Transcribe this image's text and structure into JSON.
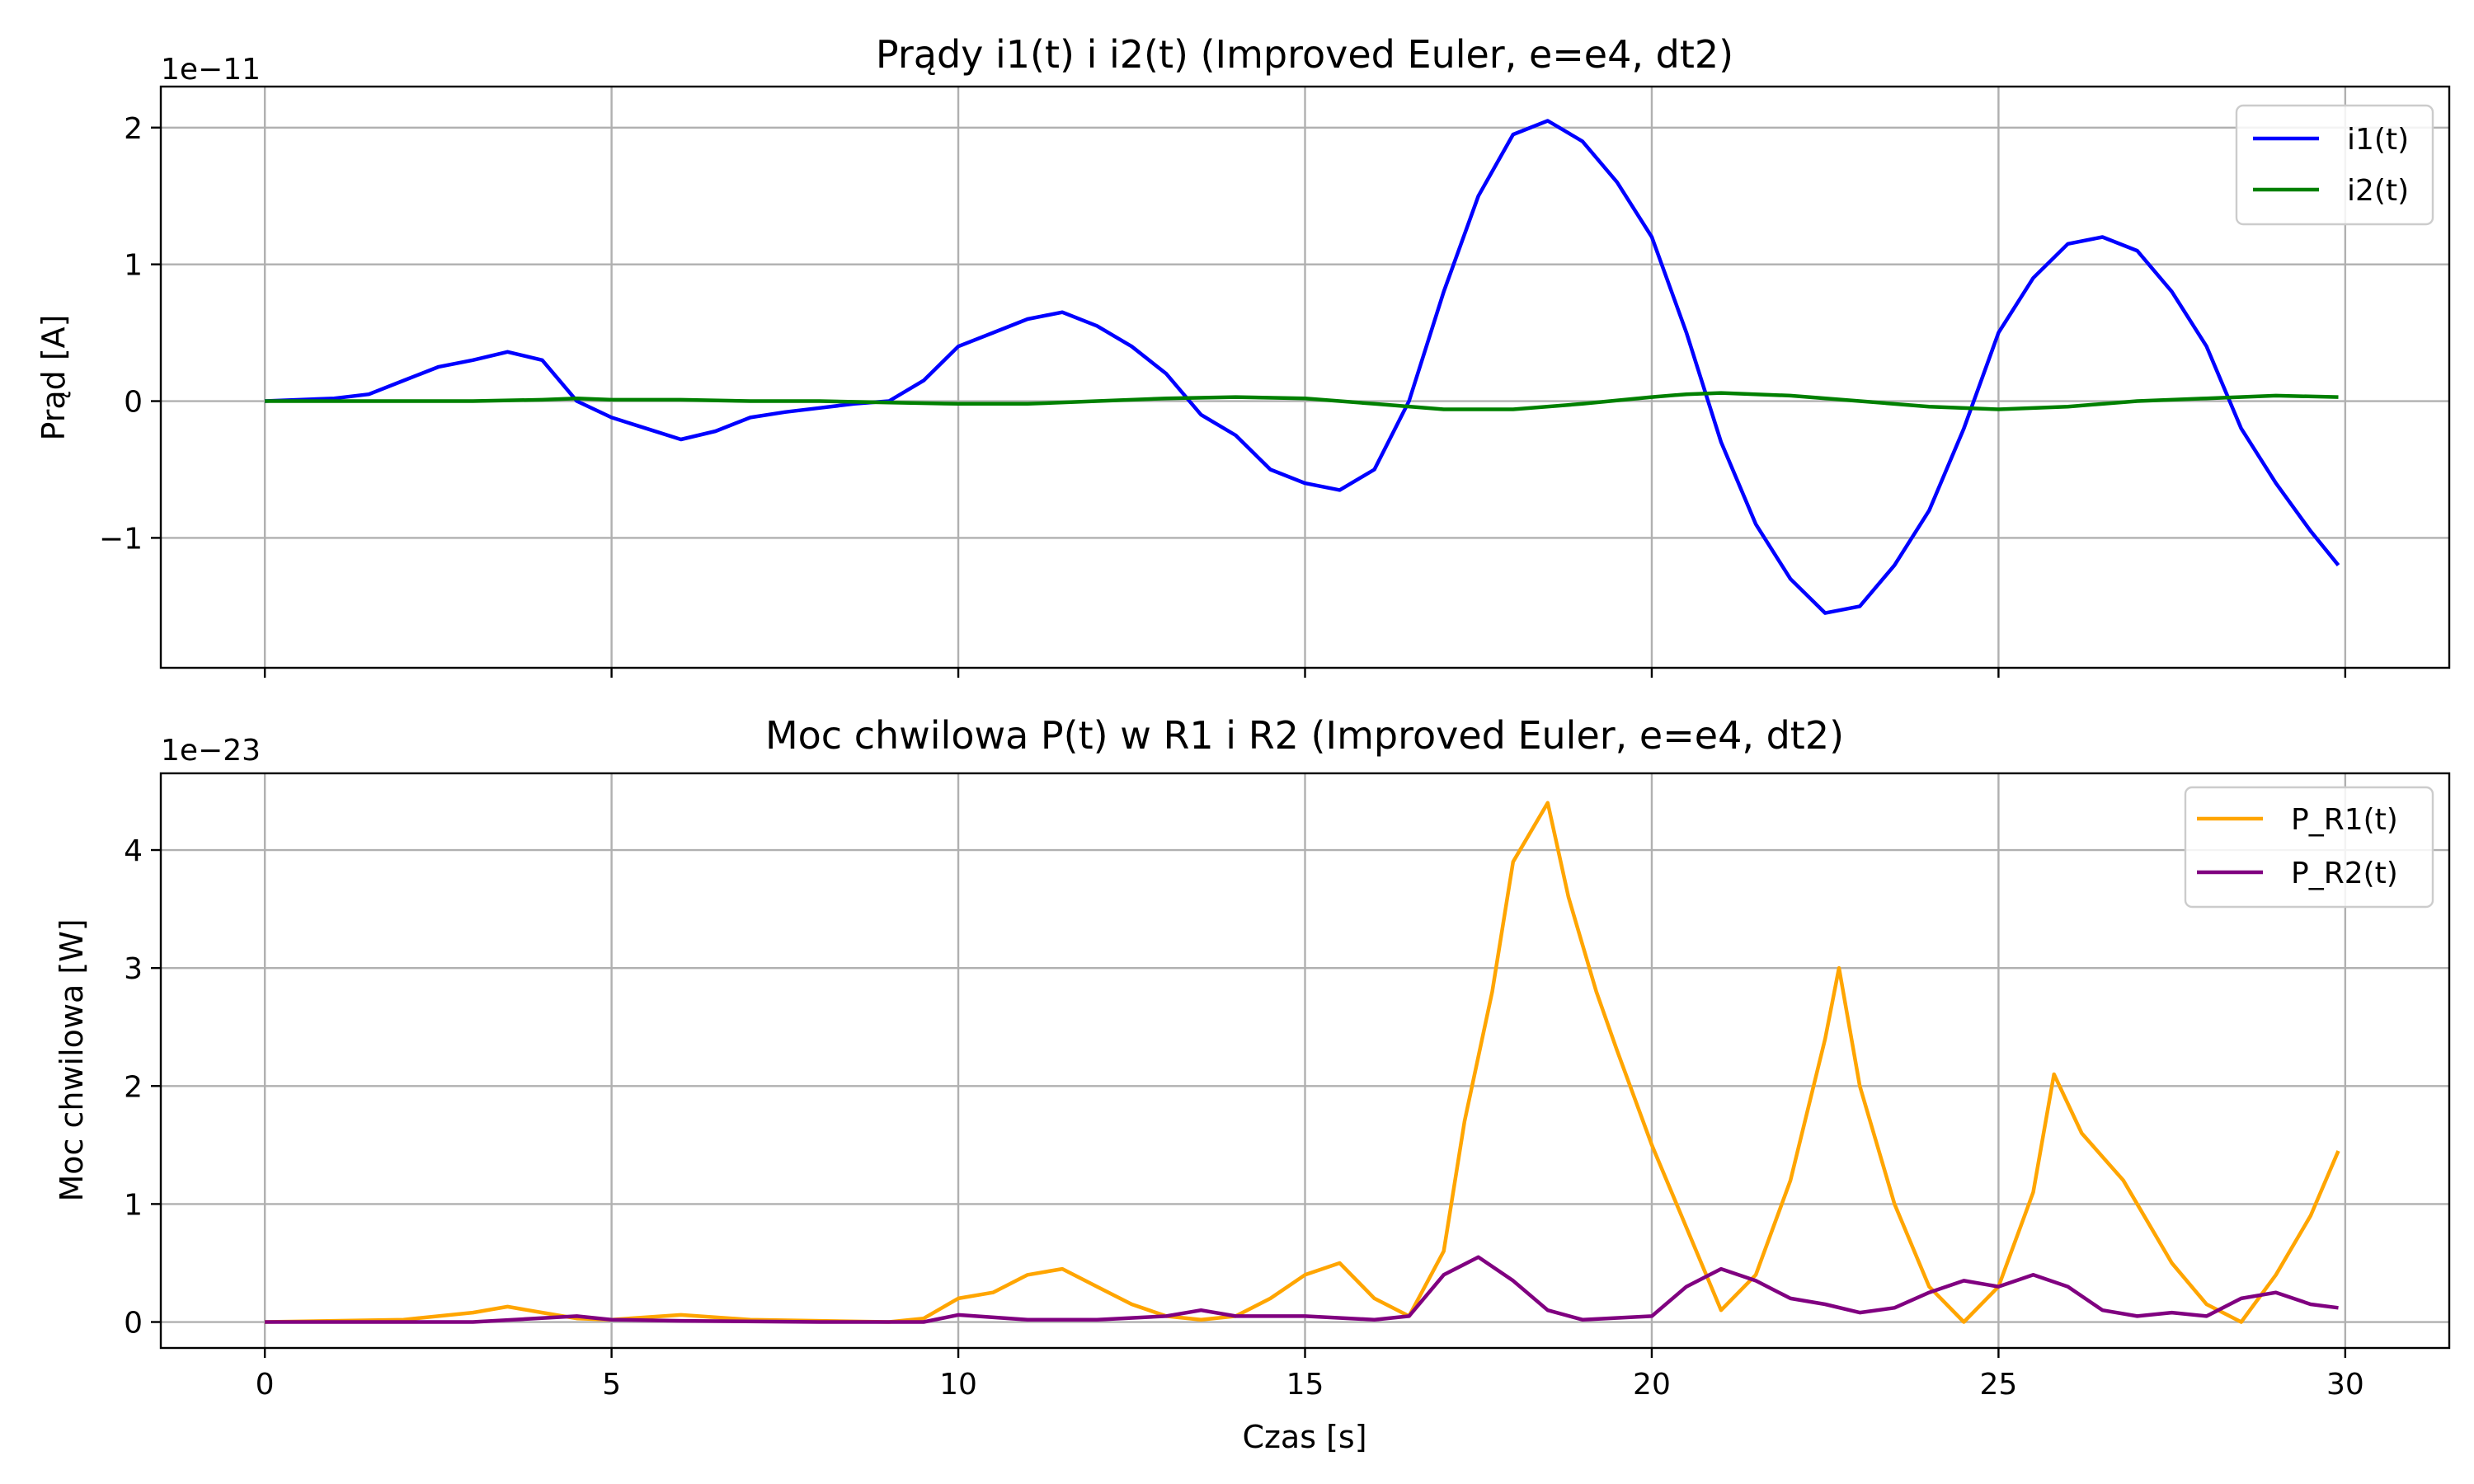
{
  "chart_data": [
    {
      "type": "line",
      "title": "Prądy i1(t) i i2(t) (Improved Euler, e=e4, dt2)",
      "xlabel": "",
      "ylabel": "Prąd [A]",
      "y_offset_text": "1e−11",
      "y_scale": 1e-11,
      "xlim": [
        -1.5,
        31.5
      ],
      "ylim": [
        -1.95,
        2.3
      ],
      "xticks": [
        0,
        5,
        10,
        15,
        20,
        25,
        30
      ],
      "xtick_labels_visible": false,
      "yticks": [
        -1,
        0,
        1,
        2
      ],
      "ytick_labels": [
        "−1",
        "0",
        "1",
        "2"
      ],
      "grid": true,
      "legend_position": "top-right",
      "series": [
        {
          "name": "i1(t)",
          "color": "#0000ff",
          "points": [
            [
              0,
              0
            ],
            [
              1,
              0.02
            ],
            [
              1.5,
              0.05
            ],
            [
              2,
              0.15
            ],
            [
              2.5,
              0.25
            ],
            [
              3,
              0.3
            ],
            [
              3.5,
              0.36
            ],
            [
              4,
              0.3
            ],
            [
              4.5,
              0
            ],
            [
              5,
              -0.12
            ],
            [
              5.5,
              -0.2
            ],
            [
              6,
              -0.28
            ],
            [
              6.5,
              -0.22
            ],
            [
              7,
              -0.12
            ],
            [
              7.5,
              -0.08
            ],
            [
              8,
              -0.05
            ],
            [
              8.5,
              -0.02
            ],
            [
              9,
              0
            ],
            [
              9.5,
              0.15
            ],
            [
              10,
              0.4
            ],
            [
              10.5,
              0.5
            ],
            [
              11,
              0.6
            ],
            [
              11.5,
              0.65
            ],
            [
              12,
              0.55
            ],
            [
              12.5,
              0.4
            ],
            [
              13,
              0.2
            ],
            [
              13.5,
              -0.1
            ],
            [
              14,
              -0.25
            ],
            [
              14.5,
              -0.5
            ],
            [
              15,
              -0.6
            ],
            [
              15.5,
              -0.65
            ],
            [
              16,
              -0.5
            ],
            [
              16.5,
              0
            ],
            [
              17,
              0.8
            ],
            [
              17.5,
              1.5
            ],
            [
              18,
              1.95
            ],
            [
              18.5,
              2.05
            ],
            [
              19,
              1.9
            ],
            [
              19.5,
              1.6
            ],
            [
              20,
              1.2
            ],
            [
              20.5,
              0.5
            ],
            [
              21,
              -0.3
            ],
            [
              21.5,
              -0.9
            ],
            [
              22,
              -1.3
            ],
            [
              22.5,
              -1.55
            ],
            [
              23,
              -1.5
            ],
            [
              23.5,
              -1.2
            ],
            [
              24,
              -0.8
            ],
            [
              24.5,
              -0.2
            ],
            [
              25,
              0.5
            ],
            [
              25.5,
              0.9
            ],
            [
              26,
              1.15
            ],
            [
              26.5,
              1.2
            ],
            [
              27,
              1.1
            ],
            [
              27.5,
              0.8
            ],
            [
              28,
              0.4
            ],
            [
              28.5,
              -0.2
            ],
            [
              29,
              -0.6
            ],
            [
              29.5,
              -0.95
            ],
            [
              29.9,
              -1.2
            ]
          ]
        },
        {
          "name": "i2(t)",
          "color": "#008000",
          "points": [
            [
              0,
              0
            ],
            [
              2,
              0
            ],
            [
              3,
              0
            ],
            [
              4,
              0.01
            ],
            [
              4.5,
              0.02
            ],
            [
              5,
              0.01
            ],
            [
              6,
              0.01
            ],
            [
              7,
              0
            ],
            [
              8,
              0
            ],
            [
              9,
              -0.01
            ],
            [
              10,
              -0.02
            ],
            [
              11,
              -0.02
            ],
            [
              12,
              0
            ],
            [
              13,
              0.02
            ],
            [
              14,
              0.03
            ],
            [
              15,
              0.02
            ],
            [
              16,
              -0.02
            ],
            [
              17,
              -0.06
            ],
            [
              18,
              -0.06
            ],
            [
              19,
              -0.02
            ],
            [
              20,
              0.03
            ],
            [
              20.5,
              0.05
            ],
            [
              21,
              0.06
            ],
            [
              22,
              0.04
            ],
            [
              23,
              0
            ],
            [
              24,
              -0.04
            ],
            [
              25,
              -0.06
            ],
            [
              26,
              -0.04
            ],
            [
              27,
              0
            ],
            [
              28,
              0.02
            ],
            [
              29,
              0.04
            ],
            [
              29.9,
              0.03
            ]
          ]
        }
      ]
    },
    {
      "type": "line",
      "title": "Moc chwilowa P(t) w R1 i R2 (Improved Euler, e=e4, dt2)",
      "xlabel": "Czas [s]",
      "ylabel": "Moc chwilowa [W]",
      "y_offset_text": "1e−23",
      "y_scale": 1e-23,
      "xlim": [
        -1.5,
        31.5
      ],
      "ylim": [
        -0.22,
        4.65
      ],
      "xticks": [
        0,
        5,
        10,
        15,
        20,
        25,
        30
      ],
      "xtick_labels": [
        "0",
        "5",
        "10",
        "15",
        "20",
        "25",
        "30"
      ],
      "yticks": [
        0,
        1,
        2,
        3,
        4
      ],
      "ytick_labels": [
        "0",
        "1",
        "2",
        "3",
        "4"
      ],
      "grid": true,
      "legend_position": "top-right",
      "series": [
        {
          "name": "P_R1(t)",
          "color": "#ffa500",
          "points": [
            [
              0,
              0
            ],
            [
              2,
              0.02
            ],
            [
              3,
              0.08
            ],
            [
              3.5,
              0.13
            ],
            [
              4,
              0.08
            ],
            [
              4.5,
              0.03
            ],
            [
              5,
              0.02
            ],
            [
              6,
              0.06
            ],
            [
              7,
              0.02
            ],
            [
              8,
              0.01
            ],
            [
              9,
              0
            ],
            [
              9.5,
              0.03
            ],
            [
              10,
              0.2
            ],
            [
              10.5,
              0.25
            ],
            [
              11,
              0.4
            ],
            [
              11.5,
              0.45
            ],
            [
              12,
              0.3
            ],
            [
              12.5,
              0.15
            ],
            [
              13,
              0.05
            ],
            [
              13.5,
              0.02
            ],
            [
              14,
              0.05
            ],
            [
              14.5,
              0.2
            ],
            [
              15,
              0.4
            ],
            [
              15.5,
              0.5
            ],
            [
              16,
              0.2
            ],
            [
              16.5,
              0.05
            ],
            [
              17,
              0.6
            ],
            [
              17.3,
              1.7
            ],
            [
              17.7,
              2.8
            ],
            [
              18,
              3.9
            ],
            [
              18.5,
              4.4
            ],
            [
              18.8,
              3.6
            ],
            [
              19.2,
              2.8
            ],
            [
              19.5,
              2.3
            ],
            [
              20,
              1.5
            ],
            [
              20.5,
              0.8
            ],
            [
              21,
              0.1
            ],
            [
              21.5,
              0.4
            ],
            [
              22,
              1.2
            ],
            [
              22.5,
              2.4
            ],
            [
              22.7,
              3.0
            ],
            [
              23,
              2.0
            ],
            [
              23.5,
              1.0
            ],
            [
              24,
              0.3
            ],
            [
              24.5,
              0
            ],
            [
              25,
              0.3
            ],
            [
              25.5,
              1.1
            ],
            [
              25.8,
              2.1
            ],
            [
              26.2,
              1.6
            ],
            [
              26.8,
              1.2
            ],
            [
              27.5,
              0.5
            ],
            [
              28,
              0.15
            ],
            [
              28.5,
              0
            ],
            [
              29,
              0.4
            ],
            [
              29.5,
              0.9
            ],
            [
              29.9,
              1.45
            ]
          ]
        },
        {
          "name": "P_R2(t)",
          "color": "#800080",
          "points": [
            [
              0,
              0
            ],
            [
              3,
              0
            ],
            [
              4.5,
              0.05
            ],
            [
              5,
              0.02
            ],
            [
              6,
              0.01
            ],
            [
              8,
              0
            ],
            [
              9.5,
              0
            ],
            [
              10,
              0.06
            ],
            [
              11,
              0.02
            ],
            [
              12,
              0.02
            ],
            [
              13,
              0.05
            ],
            [
              13.5,
              0.1
            ],
            [
              14,
              0.05
            ],
            [
              15,
              0.05
            ],
            [
              16,
              0.02
            ],
            [
              16.5,
              0.05
            ],
            [
              17,
              0.4
            ],
            [
              17.5,
              0.55
            ],
            [
              18,
              0.35
            ],
            [
              18.5,
              0.1
            ],
            [
              19,
              0.02
            ],
            [
              20,
              0.05
            ],
            [
              20.5,
              0.3
            ],
            [
              21,
              0.45
            ],
            [
              21.5,
              0.35
            ],
            [
              22,
              0.2
            ],
            [
              22.5,
              0.15
            ],
            [
              23,
              0.08
            ],
            [
              23.5,
              0.12
            ],
            [
              24,
              0.25
            ],
            [
              24.5,
              0.35
            ],
            [
              25,
              0.3
            ],
            [
              25.5,
              0.4
            ],
            [
              26,
              0.3
            ],
            [
              26.5,
              0.1
            ],
            [
              27,
              0.05
            ],
            [
              27.5,
              0.08
            ],
            [
              28,
              0.05
            ],
            [
              28.5,
              0.2
            ],
            [
              29,
              0.25
            ],
            [
              29.5,
              0.15
            ],
            [
              29.9,
              0.12
            ]
          ]
        }
      ]
    }
  ]
}
